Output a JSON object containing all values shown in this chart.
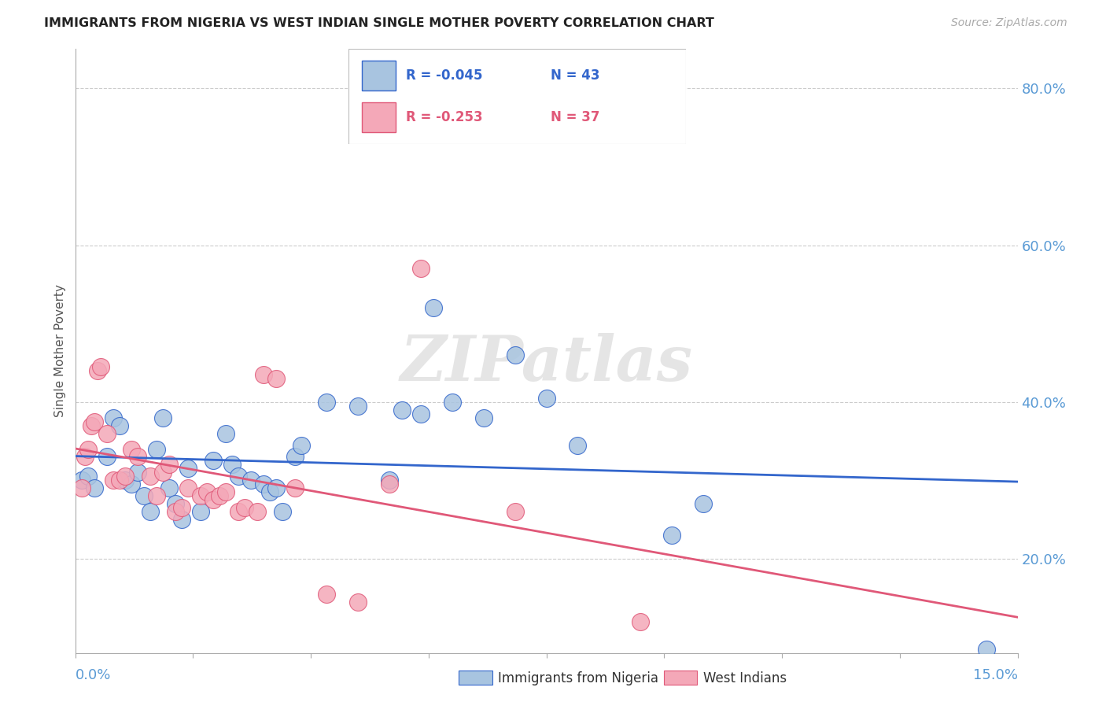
{
  "title": "IMMIGRANTS FROM NIGERIA VS WEST INDIAN SINGLE MOTHER POVERTY CORRELATION CHART",
  "source": "Source: ZipAtlas.com",
  "ylabel": "Single Mother Poverty",
  "legend_label1": "Immigrants from Nigeria",
  "legend_label2": "West Indians",
  "r1": -0.045,
  "n1": 43,
  "r2": -0.253,
  "n2": 37,
  "xmin": 0.0,
  "xmax": 15.0,
  "ymin": 8.0,
  "ymax": 85.0,
  "yticks": [
    20.0,
    40.0,
    60.0,
    80.0
  ],
  "color_nigeria": "#a8c4e0",
  "color_westindian": "#f4a8b8",
  "color_nigeria_line": "#3366cc",
  "color_westindian_line": "#e05878",
  "color_axis": "#5b9bd5",
  "watermark": "ZIPatlas",
  "nigeria_points": [
    [
      0.1,
      30.0
    ],
    [
      0.2,
      30.5
    ],
    [
      0.3,
      29.0
    ],
    [
      0.5,
      33.0
    ],
    [
      0.6,
      38.0
    ],
    [
      0.7,
      37.0
    ],
    [
      0.8,
      30.0
    ],
    [
      0.9,
      29.5
    ],
    [
      1.0,
      31.0
    ],
    [
      1.1,
      28.0
    ],
    [
      1.2,
      26.0
    ],
    [
      1.3,
      34.0
    ],
    [
      1.4,
      38.0
    ],
    [
      1.5,
      29.0
    ],
    [
      1.6,
      27.0
    ],
    [
      1.7,
      25.0
    ],
    [
      1.8,
      31.5
    ],
    [
      2.0,
      26.0
    ],
    [
      2.2,
      32.5
    ],
    [
      2.4,
      36.0
    ],
    [
      2.5,
      32.0
    ],
    [
      2.6,
      30.5
    ],
    [
      2.8,
      30.0
    ],
    [
      3.0,
      29.5
    ],
    [
      3.1,
      28.5
    ],
    [
      3.2,
      29.0
    ],
    [
      3.3,
      26.0
    ],
    [
      3.5,
      33.0
    ],
    [
      3.6,
      34.5
    ],
    [
      4.0,
      40.0
    ],
    [
      4.5,
      39.5
    ],
    [
      5.0,
      30.0
    ],
    [
      5.2,
      39.0
    ],
    [
      5.5,
      38.5
    ],
    [
      5.7,
      52.0
    ],
    [
      6.0,
      40.0
    ],
    [
      6.5,
      38.0
    ],
    [
      7.0,
      46.0
    ],
    [
      7.5,
      40.5
    ],
    [
      8.0,
      34.5
    ],
    [
      9.5,
      23.0
    ],
    [
      10.0,
      27.0
    ],
    [
      14.5,
      8.5
    ]
  ],
  "westindian_points": [
    [
      0.1,
      29.0
    ],
    [
      0.15,
      33.0
    ],
    [
      0.2,
      34.0
    ],
    [
      0.25,
      37.0
    ],
    [
      0.3,
      37.5
    ],
    [
      0.35,
      44.0
    ],
    [
      0.4,
      44.5
    ],
    [
      0.5,
      36.0
    ],
    [
      0.6,
      30.0
    ],
    [
      0.7,
      30.0
    ],
    [
      0.8,
      30.5
    ],
    [
      0.9,
      34.0
    ],
    [
      1.0,
      33.0
    ],
    [
      1.2,
      30.5
    ],
    [
      1.3,
      28.0
    ],
    [
      1.4,
      31.0
    ],
    [
      1.5,
      32.0
    ],
    [
      1.6,
      26.0
    ],
    [
      1.7,
      26.5
    ],
    [
      1.8,
      29.0
    ],
    [
      2.0,
      28.0
    ],
    [
      2.1,
      28.5
    ],
    [
      2.2,
      27.5
    ],
    [
      2.3,
      28.0
    ],
    [
      2.4,
      28.5
    ],
    [
      2.6,
      26.0
    ],
    [
      2.7,
      26.5
    ],
    [
      2.9,
      26.0
    ],
    [
      3.0,
      43.5
    ],
    [
      3.2,
      43.0
    ],
    [
      3.5,
      29.0
    ],
    [
      4.0,
      15.5
    ],
    [
      4.5,
      14.5
    ],
    [
      5.0,
      29.5
    ],
    [
      5.5,
      57.0
    ],
    [
      7.0,
      26.0
    ],
    [
      9.0,
      12.0
    ]
  ]
}
